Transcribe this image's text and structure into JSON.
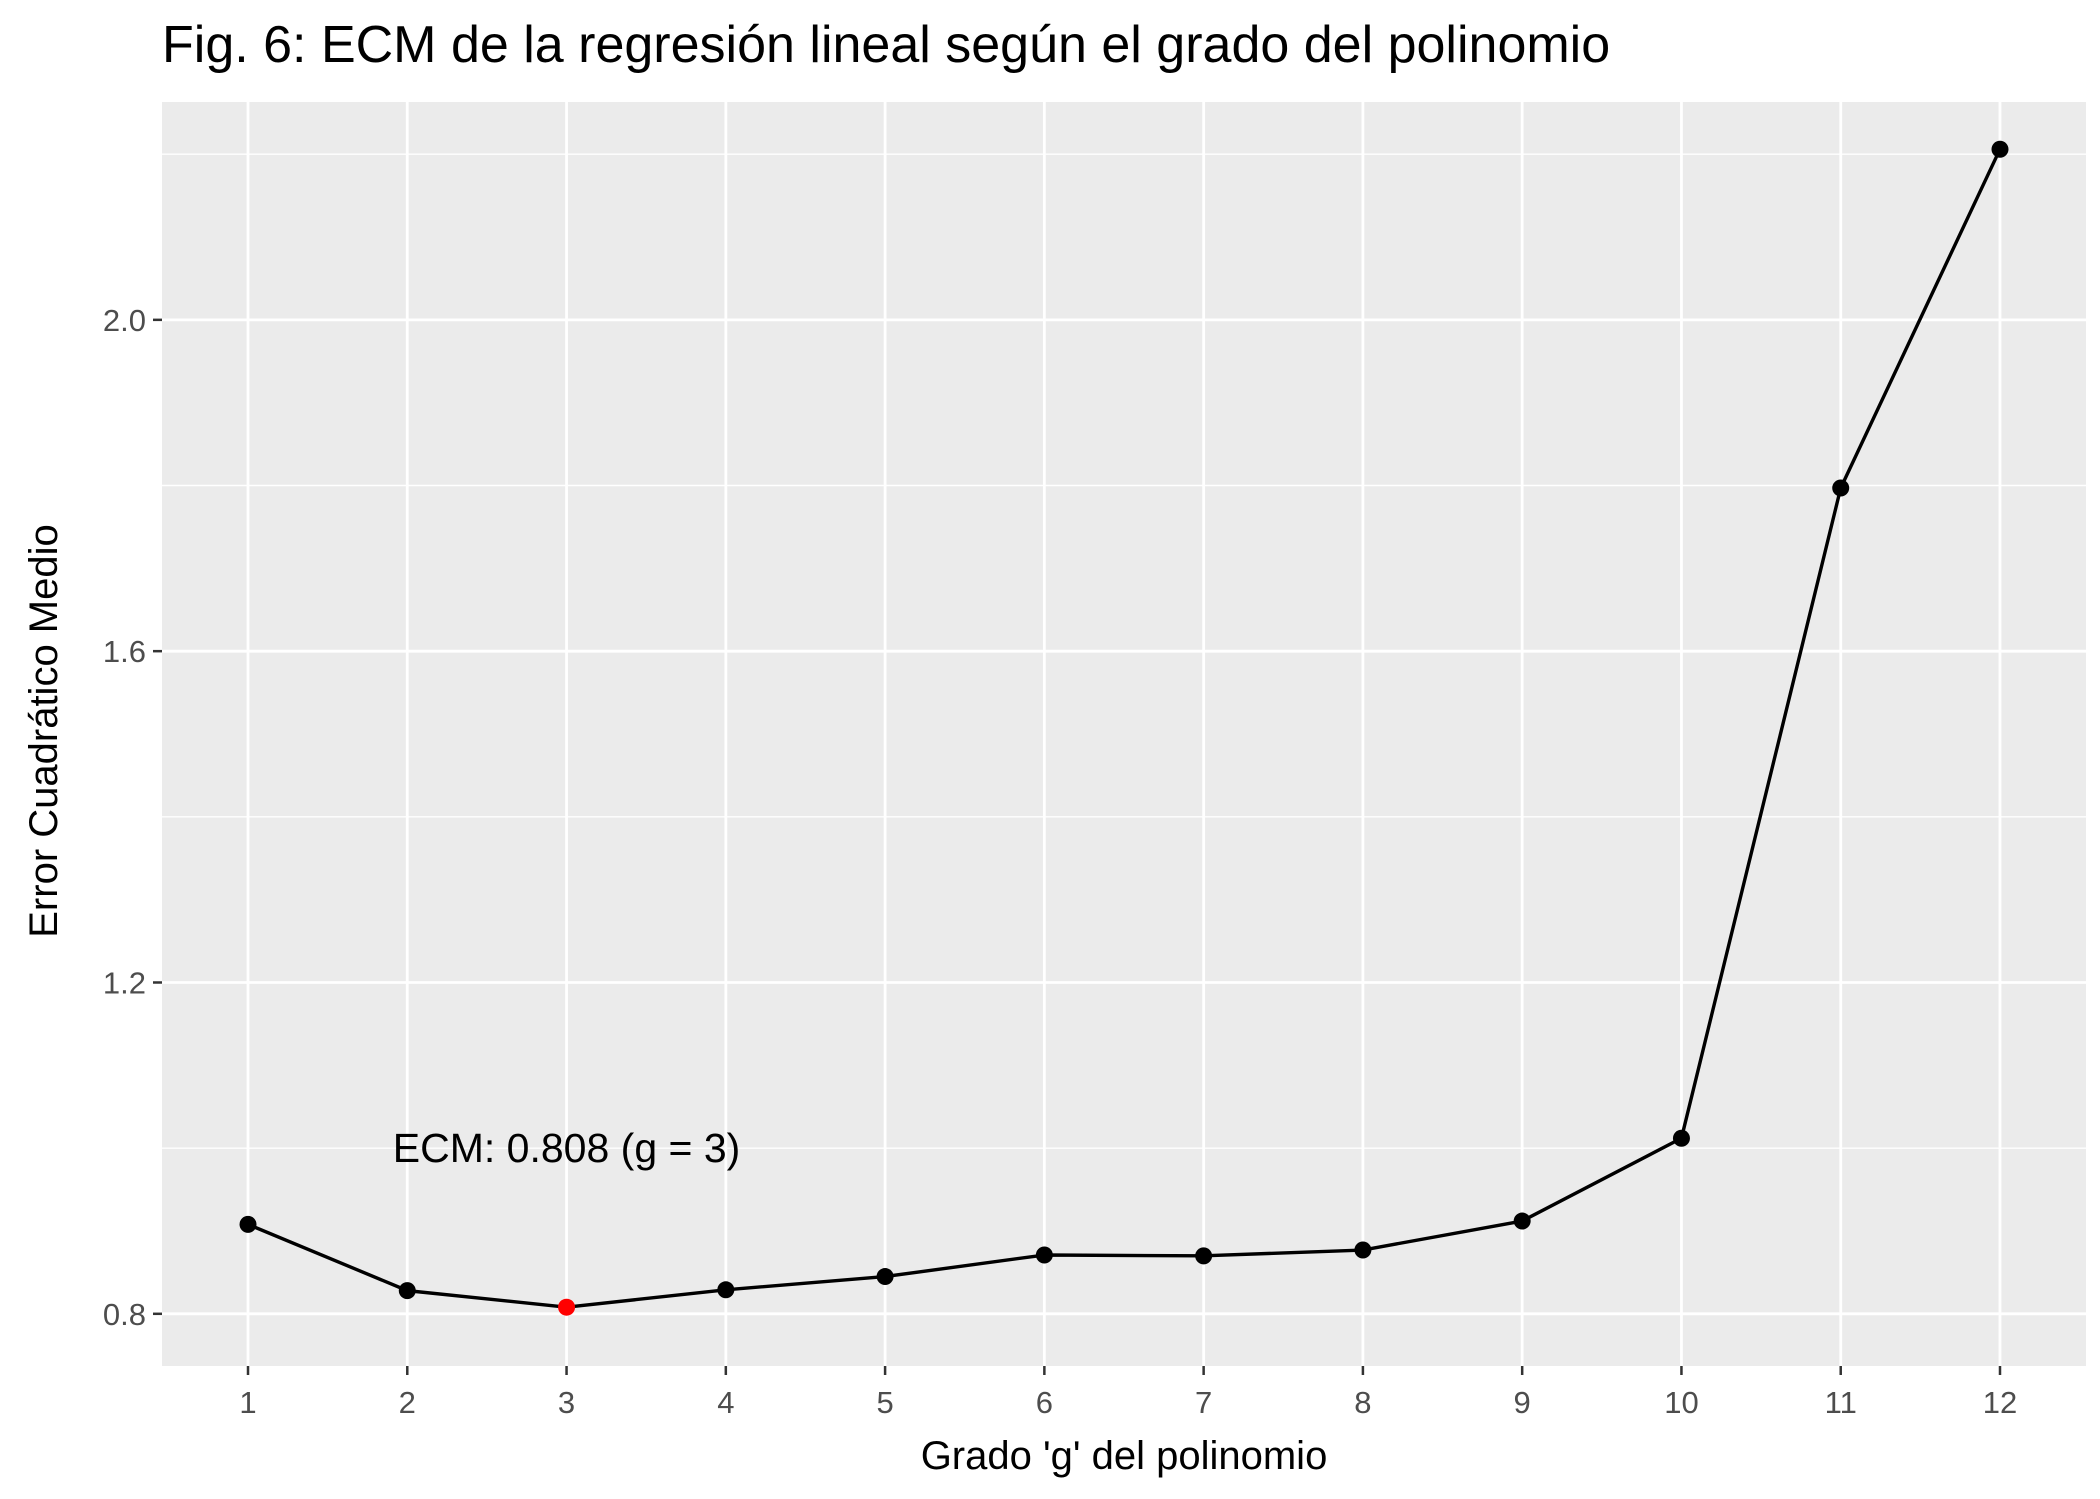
{
  "chart_data": {
    "type": "line",
    "title": "Fig. 6: ECM de la regresión lineal según el grado del polinomio",
    "xlabel": "Grado 'g' del polinomio",
    "ylabel": "Error Cuadrático Medio",
    "x": [
      1,
      2,
      3,
      4,
      5,
      6,
      7,
      8,
      9,
      10,
      11,
      12
    ],
    "x_tick_labels": [
      "1",
      "2",
      "3",
      "4",
      "5",
      "6",
      "7",
      "8",
      "9",
      "10",
      "11",
      "12"
    ],
    "y_ticks": [
      0.8,
      1.2,
      1.6,
      2.0
    ],
    "y_tick_labels": [
      "0.8",
      "1.2",
      "1.6",
      "2.0"
    ],
    "xlim": [
      0.46,
      12.54
    ],
    "ylim": [
      0.737,
      2.263
    ],
    "grid": true,
    "series": [
      {
        "values": [
          0.908,
          0.828,
          0.808,
          0.829,
          0.845,
          0.871,
          0.87,
          0.877,
          0.912,
          1.012,
          1.797,
          2.206
        ]
      }
    ],
    "highlight": {
      "x": 3,
      "y": 0.808
    },
    "annotation": {
      "text": "ECM: 0.808 (g = 3)",
      "x": 3,
      "y": 1.0
    },
    "colors": {
      "panel_background": "#ebebeb",
      "grid": "#ffffff",
      "line": "#000000",
      "point": "#000000",
      "highlight_point": "#ff0000",
      "tick_text": "#4d4d4d",
      "tick_mark": "#333333"
    }
  }
}
